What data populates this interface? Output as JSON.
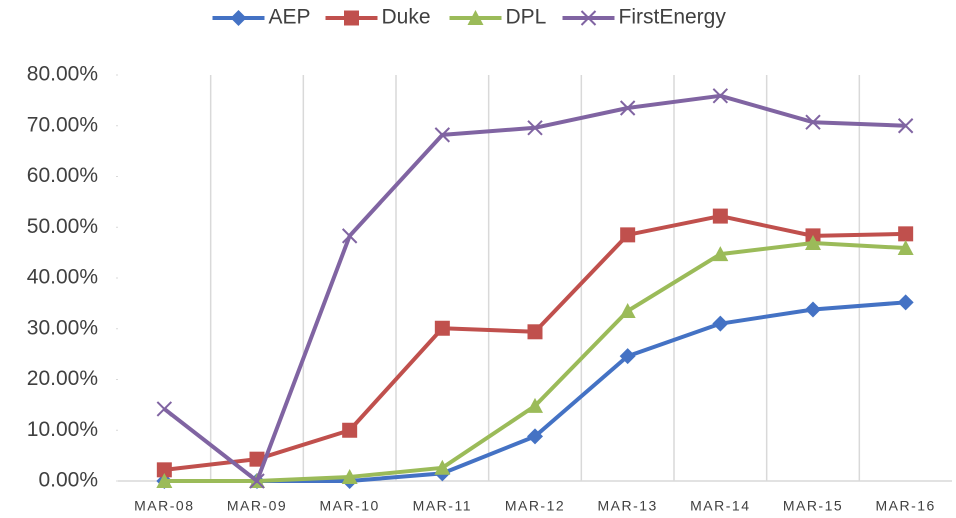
{
  "chart_data": {
    "type": "line",
    "categories": [
      "MAR-08",
      "MAR-09",
      "MAR-10",
      "MAR-11",
      "MAR-12",
      "MAR-13",
      "MAR-14",
      "MAR-15",
      "MAR-16"
    ],
    "series": [
      {
        "name": "AEP",
        "color": "#4472c4",
        "marker": "diamond",
        "values": [
          0,
          0,
          0,
          1.5,
          8.8,
          24.6,
          31,
          33.8,
          35.2
        ]
      },
      {
        "name": "Duke",
        "color": "#c0504d",
        "marker": "square",
        "values": [
          2.2,
          4.3,
          10,
          30.1,
          29.4,
          48.5,
          52.2,
          48.3,
          48.7
        ]
      },
      {
        "name": "DPL",
        "color": "#9bbb59",
        "marker": "triangle",
        "values": [
          0,
          0,
          0.8,
          2.6,
          14.8,
          33.5,
          44.7,
          46.9,
          45.9
        ]
      },
      {
        "name": "FirstEnergy",
        "color": "#8064a2",
        "marker": "x",
        "values": [
          14.2,
          0,
          48.3,
          68.2,
          69.6,
          73.5,
          75.9,
          70.7,
          70
        ]
      }
    ],
    "ylim": [
      0,
      80
    ],
    "yticks": [
      {
        "value": 0,
        "label": "0.00%"
      },
      {
        "value": 10,
        "label": "10.00%"
      },
      {
        "value": 20,
        "label": "20.00%"
      },
      {
        "value": 30,
        "label": "30.00%"
      },
      {
        "value": 40,
        "label": "40.00%"
      },
      {
        "value": 50,
        "label": "50.00%"
      },
      {
        "value": 60,
        "label": "60.00%"
      },
      {
        "value": 70,
        "label": "70.00%"
      },
      {
        "value": 80,
        "label": "80.00%"
      }
    ],
    "legend": "top"
  }
}
